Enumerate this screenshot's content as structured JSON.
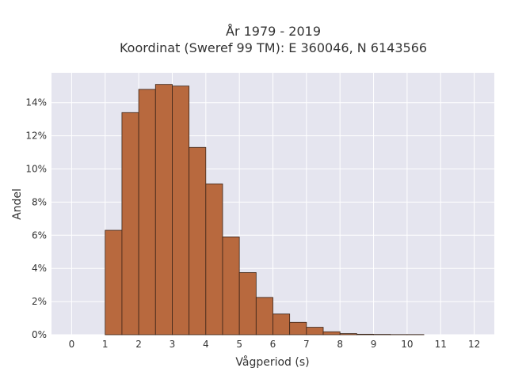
{
  "chart_data": {
    "type": "bar",
    "title_line1": "År 1979 - 2019",
    "title_line2": "Koordinat (Sweref 99 TM): E 360046, N 6143566",
    "xlabel": "Vågperiod (s)",
    "ylabel": "Andel",
    "xlim": [
      -0.6,
      12.6
    ],
    "ylim": [
      0,
      15.8
    ],
    "x_ticks": [
      0,
      1,
      2,
      3,
      4,
      5,
      6,
      7,
      8,
      9,
      10,
      11,
      12
    ],
    "y_ticks": [
      0,
      2,
      4,
      6,
      8,
      10,
      12,
      14
    ],
    "y_tick_suffix": "%",
    "grid": true,
    "bin_width": 0.5,
    "bins": [
      {
        "x0": 1.0,
        "x1": 1.5,
        "value": 6.3
      },
      {
        "x0": 1.5,
        "x1": 2.0,
        "value": 13.4
      },
      {
        "x0": 2.0,
        "x1": 2.5,
        "value": 14.8
      },
      {
        "x0": 2.5,
        "x1": 3.0,
        "value": 15.1
      },
      {
        "x0": 3.0,
        "x1": 3.5,
        "value": 15.0
      },
      {
        "x0": 3.5,
        "x1": 4.0,
        "value": 11.3
      },
      {
        "x0": 4.0,
        "x1": 4.5,
        "value": 9.1
      },
      {
        "x0": 4.5,
        "x1": 5.0,
        "value": 5.9
      },
      {
        "x0": 5.0,
        "x1": 5.5,
        "value": 3.75
      },
      {
        "x0": 5.5,
        "x1": 6.0,
        "value": 2.25
      },
      {
        "x0": 6.0,
        "x1": 6.5,
        "value": 1.25
      },
      {
        "x0": 6.5,
        "x1": 7.0,
        "value": 0.75
      },
      {
        "x0": 7.0,
        "x1": 7.5,
        "value": 0.45
      },
      {
        "x0": 7.5,
        "x1": 8.0,
        "value": 0.18
      },
      {
        "x0": 8.0,
        "x1": 8.5,
        "value": 0.07
      },
      {
        "x0": 8.5,
        "x1": 9.0,
        "value": 0.03
      },
      {
        "x0": 9.0,
        "x1": 9.5,
        "value": 0.02
      },
      {
        "x0": 9.5,
        "x1": 10.0,
        "value": 0.01
      },
      {
        "x0": 10.0,
        "x1": 10.5,
        "value": 0.01
      }
    ],
    "colors": {
      "bar_fill": "#b8693e",
      "bar_stroke": "#3a2418",
      "plot_background": "#e5e5ef",
      "grid": "#ffffff",
      "text": "#333333"
    }
  }
}
